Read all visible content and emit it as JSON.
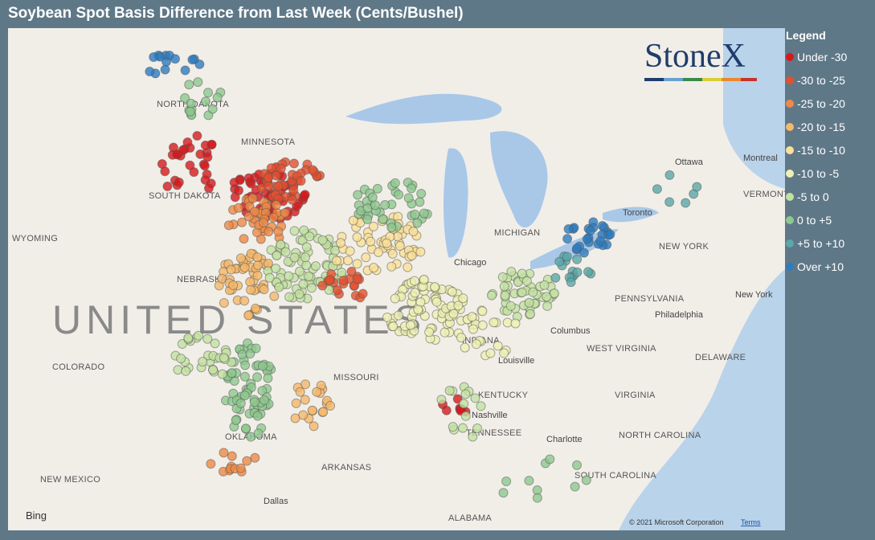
{
  "header": {
    "title": "Soybean Spot Basis Difference from Last Week (Cents/Bushel)"
  },
  "legend": {
    "title": "Legend",
    "items": [
      {
        "label": "Under -30",
        "color": "#d7191c"
      },
      {
        "label": "-30 to -25",
        "color": "#e4502e"
      },
      {
        "label": "-25 to -20",
        "color": "#ee8a46"
      },
      {
        "label": "-20 to -15",
        "color": "#f5b86a"
      },
      {
        "label": "-15 to -10",
        "color": "#fae099"
      },
      {
        "label": "-10 to -5",
        "color": "#eef0b2"
      },
      {
        "label": "-5 to 0",
        "color": "#c3e1a1"
      },
      {
        "label": "0 to +5",
        "color": "#8ec88f"
      },
      {
        "label": "+5 to +10",
        "color": "#5aa8a8"
      },
      {
        "label": "Over +10",
        "color": "#2c7cc0"
      }
    ]
  },
  "map": {
    "country": "UNITED STATES",
    "regions": [
      "WYOMING",
      "NORTH DAKOTA",
      "SOUTH DAKOTA",
      "MINNESOTA",
      "NEBRASKA",
      "COLORADO",
      "NEW MEXICO",
      "OKLAHOMA",
      "MISSOURI",
      "ARKANSAS",
      "KENTUCKY",
      "TENNESSEE",
      "ALABAMA",
      "INDIANA",
      "MICHIGAN",
      "WEST VIRGINIA",
      "VIRGINIA",
      "NORTH CAROLINA",
      "SOUTH CAROLINA",
      "PENNSYLVANIA",
      "NEW YORK",
      "VERMONT",
      "DELAWARE"
    ],
    "cities": [
      "Chicago",
      "Toronto",
      "Ottawa",
      "Montreal",
      "Philadelphia",
      "New York",
      "Columbus",
      "Louisville",
      "Nashville",
      "Charlotte",
      "Dallas"
    ],
    "logo": "StoneX",
    "provider": "Bing",
    "copyright": "© 2021 Microsoft Corporation",
    "terms": "Terms"
  }
}
